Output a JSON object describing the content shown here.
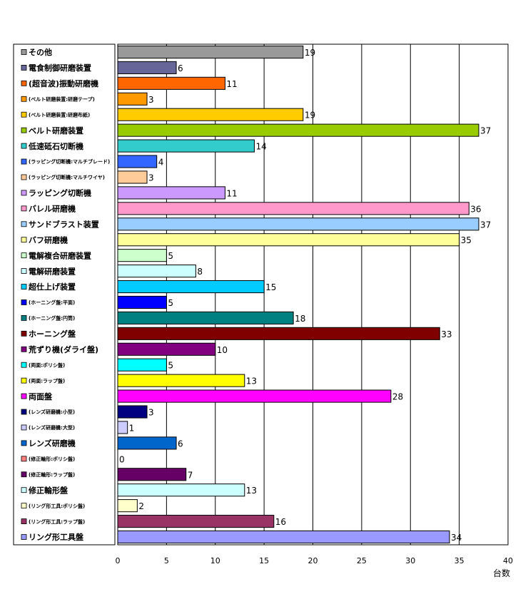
{
  "chart_data": {
    "type": "bar",
    "orientation": "horizontal",
    "title": "",
    "xlabel": "台数",
    "ylabel": "",
    "xlim": [
      0,
      40
    ],
    "xticks": [
      0,
      5,
      10,
      15,
      20,
      25,
      30,
      35,
      40
    ],
    "grid": true,
    "legend_position": "left",
    "categories": [
      "その他",
      "電食制御研磨装置",
      "(超音波)振動研磨機",
      "(ベルト研磨装置:研磨テープ)",
      "(ベルト研磨装置:研磨布紙)",
      "ベルト研磨装置",
      "低速砥石切断機",
      "(ラッピング切断機:マルチブレード)",
      "(ラッピング切断機:マルチワイヤ)",
      "ラッピング切断機",
      "バレル研磨機",
      "サンドブラスト装置",
      "バフ研磨機",
      "電解複合研磨装置",
      "電解研磨装置",
      "超仕上げ装置",
      "(ホーニング盤:平面)",
      "(ホーニング盤:円筒)",
      "ホーニング盤",
      "荒ずり機(ダライ盤)",
      "(両面:ポリシ盤)",
      "(両面:ラップ盤)",
      "両面盤",
      "(レンズ研磨機:小型)",
      "(レンズ研磨機:大型)",
      "レンズ研磨機",
      "(修正輪形:ポリシ盤)",
      "(修正輪形:ラップ盤)",
      "修正輪形盤",
      "(リング形工具:ポリシ盤)",
      "(リング形工具:ラップ盤)",
      "リング形工具盤"
    ],
    "values": [
      19,
      6,
      11,
      3,
      19,
      37,
      14,
      4,
      3,
      11,
      36,
      37,
      35,
      5,
      8,
      15,
      5,
      18,
      33,
      10,
      5,
      13,
      28,
      3,
      1,
      6,
      0,
      7,
      13,
      2,
      16,
      34
    ],
    "sub_items": [
      false,
      false,
      false,
      true,
      true,
      false,
      false,
      true,
      true,
      false,
      false,
      false,
      false,
      false,
      false,
      false,
      true,
      true,
      false,
      false,
      true,
      true,
      false,
      true,
      true,
      false,
      true,
      true,
      false,
      true,
      true,
      false
    ],
    "colors": [
      "#999999",
      "#666699",
      "#ff6600",
      "#ff9900",
      "#ffcc00",
      "#99cc00",
      "#33cccc",
      "#3366ff",
      "#ffcc99",
      "#cc99ff",
      "#ff99cc",
      "#99ccff",
      "#ffff99",
      "#ccffcc",
      "#ccffff",
      "#00ccff",
      "#0000ff",
      "#008080",
      "#800000",
      "#800080",
      "#00ffff",
      "#ffff00",
      "#ff00ff",
      "#000080",
      "#ccccff",
      "#0066cc",
      "#ff8080",
      "#660066",
      "#ccffff",
      "#ffffcc",
      "#993366",
      "#9999ff"
    ]
  }
}
